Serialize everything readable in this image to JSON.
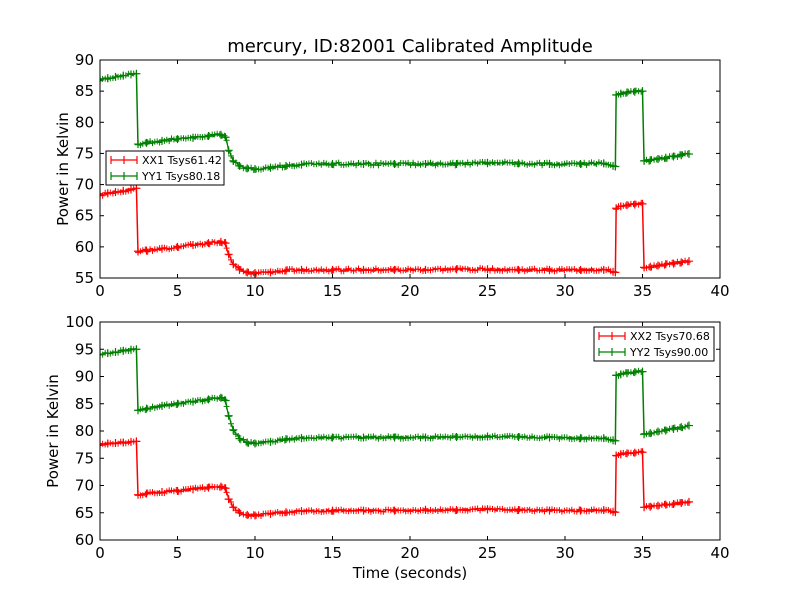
{
  "figure": {
    "title": "mercury, ID:82001 Calibrated Amplitude",
    "xlabel": "Time (seconds)"
  },
  "colors": {
    "xx": "#ff0000",
    "yy": "#008000"
  },
  "chart_data": [
    {
      "type": "line",
      "title": "mercury, ID:82001 Calibrated Amplitude",
      "xlabel": "",
      "ylabel": "Power in Kelvin",
      "xlim": [
        0,
        40
      ],
      "ylim": [
        55,
        90
      ],
      "xticks": [
        0,
        5,
        10,
        15,
        20,
        25,
        30,
        35,
        40
      ],
      "yticks": [
        55,
        60,
        65,
        70,
        75,
        80,
        85,
        90
      ],
      "grid": false,
      "legend": "center-left",
      "series": [
        {
          "name": "XX1 Tsys61.42",
          "color": "#ff0000",
          "segments": [
            {
              "x": [
                0.0,
                0.5,
                1.0,
                1.5,
                2.0,
                2.35
              ],
              "y": [
                68.3,
                68.6,
                68.8,
                69.0,
                69.2,
                69.4
              ]
            },
            {
              "x": [
                2.45,
                3.0,
                4.0,
                5.0,
                6.0,
                7.0,
                7.8,
                8.1,
                8.3,
                8.6,
                9.0,
                9.5,
                10.0,
                11.0,
                12.0,
                13.0,
                15.0,
                17.0,
                19.0,
                21.0,
                23.0,
                25.0,
                27.0,
                29.0,
                31.0,
                32.5,
                33.1,
                33.25
              ],
              "y": [
                59.3,
                59.4,
                59.7,
                60.0,
                60.3,
                60.6,
                60.8,
                60.6,
                58.8,
                57.2,
                56.3,
                55.9,
                55.8,
                55.9,
                56.2,
                56.3,
                56.3,
                56.3,
                56.3,
                56.3,
                56.4,
                56.4,
                56.3,
                56.3,
                56.3,
                56.3,
                56.0,
                55.9
              ]
            },
            {
              "x": [
                33.3,
                33.6,
                34.0,
                34.5,
                35.0
              ],
              "y": [
                66.2,
                66.5,
                66.7,
                66.8,
                66.9
              ]
            },
            {
              "x": [
                35.1,
                35.5,
                36.0,
                36.5,
                37.0,
                37.5,
                38.0
              ],
              "y": [
                56.7,
                56.8,
                57.0,
                57.2,
                57.3,
                57.5,
                57.7
              ]
            }
          ]
        },
        {
          "name": "YY1 Tsys80.18",
          "color": "#008000",
          "segments": [
            {
              "x": [
                0.0,
                0.5,
                1.0,
                1.5,
                2.0,
                2.35
              ],
              "y": [
                86.8,
                87.1,
                87.3,
                87.5,
                87.7,
                87.8
              ]
            },
            {
              "x": [
                2.45,
                3.0,
                4.0,
                5.0,
                6.0,
                7.0,
                7.8,
                8.1,
                8.3,
                8.6,
                9.0,
                9.5,
                10.0,
                11.0,
                12.0,
                13.0,
                15.0,
                17.0,
                19.0,
                21.0,
                23.0,
                25.0,
                27.0,
                29.0,
                31.0,
                32.5,
                33.1,
                33.25
              ],
              "y": [
                76.5,
                76.7,
                77.0,
                77.3,
                77.5,
                77.8,
                78.0,
                77.6,
                75.5,
                73.8,
                73.0,
                72.6,
                72.5,
                72.7,
                73.0,
                73.2,
                73.3,
                73.3,
                73.3,
                73.3,
                73.3,
                73.5,
                73.4,
                73.3,
                73.3,
                73.4,
                73.0,
                72.9
              ]
            },
            {
              "x": [
                33.3,
                33.6,
                34.0,
                34.5,
                35.0
              ],
              "y": [
                84.4,
                84.6,
                84.8,
                84.9,
                85.0
              ]
            },
            {
              "x": [
                35.1,
                35.5,
                36.0,
                36.5,
                37.0,
                37.5,
                38.0
              ],
              "y": [
                73.8,
                73.9,
                74.1,
                74.3,
                74.5,
                74.7,
                74.9
              ]
            }
          ]
        }
      ]
    },
    {
      "type": "line",
      "title": "",
      "xlabel": "Time (seconds)",
      "ylabel": "Power in Kelvin",
      "xlim": [
        0,
        40
      ],
      "ylim": [
        60,
        100
      ],
      "xticks": [
        0,
        5,
        10,
        15,
        20,
        25,
        30,
        35,
        40
      ],
      "yticks": [
        60,
        65,
        70,
        75,
        80,
        85,
        90,
        95,
        100
      ],
      "grid": false,
      "legend": "top-right",
      "series": [
        {
          "name": "XX2 Tsys70.68",
          "color": "#ff0000",
          "segments": [
            {
              "x": [
                0.0,
                0.5,
                1.0,
                1.5,
                2.0,
                2.35
              ],
              "y": [
                77.5,
                77.7,
                77.8,
                77.9,
                78.0,
                78.1
              ]
            },
            {
              "x": [
                2.45,
                3.0,
                4.0,
                5.0,
                6.0,
                7.0,
                7.8,
                8.1,
                8.3,
                8.6,
                9.0,
                9.5,
                10.0,
                11.0,
                12.0,
                13.0,
                15.0,
                17.0,
                19.0,
                21.0,
                23.0,
                25.0,
                27.0,
                29.0,
                31.0,
                32.5,
                33.1,
                33.25
              ],
              "y": [
                68.3,
                68.5,
                68.8,
                69.0,
                69.3,
                69.6,
                69.8,
                69.5,
                67.5,
                66.0,
                65.0,
                64.6,
                64.5,
                64.8,
                65.1,
                65.3,
                65.4,
                65.4,
                65.4,
                65.5,
                65.5,
                65.6,
                65.5,
                65.4,
                65.4,
                65.5,
                65.2,
                65.1
              ]
            },
            {
              "x": [
                33.3,
                33.6,
                34.0,
                34.5,
                35.0
              ],
              "y": [
                75.5,
                75.7,
                75.9,
                76.0,
                76.1
              ]
            },
            {
              "x": [
                35.1,
                35.5,
                36.0,
                36.5,
                37.0,
                37.5,
                38.0
              ],
              "y": [
                66.0,
                66.1,
                66.3,
                66.5,
                66.6,
                66.8,
                67.0
              ]
            }
          ]
        },
        {
          "name": "YY2 Tsys90.00",
          "color": "#008000",
          "segments": [
            {
              "x": [
                0.0,
                0.5,
                1.0,
                1.5,
                2.0,
                2.35
              ],
              "y": [
                94.0,
                94.3,
                94.5,
                94.7,
                94.9,
                95.0
              ]
            },
            {
              "x": [
                2.45,
                3.0,
                4.0,
                5.0,
                6.0,
                7.0,
                7.8,
                8.1,
                8.3,
                8.6,
                9.0,
                9.5,
                10.0,
                11.0,
                12.0,
                13.0,
                15.0,
                17.0,
                19.0,
                21.0,
                23.0,
                25.0,
                27.0,
                29.0,
                31.0,
                32.5,
                33.1,
                33.25
              ],
              "y": [
                83.8,
                84.1,
                84.6,
                85.0,
                85.4,
                85.8,
                86.1,
                85.6,
                82.8,
                80.2,
                78.6,
                77.9,
                77.7,
                78.0,
                78.5,
                78.7,
                78.8,
                78.8,
                78.8,
                78.8,
                78.9,
                79.0,
                78.9,
                78.8,
                78.7,
                78.7,
                78.3,
                78.2
              ]
            },
            {
              "x": [
                33.3,
                33.6,
                34.0,
                34.5,
                35.0
              ],
              "y": [
                90.2,
                90.4,
                90.6,
                90.8,
                90.9
              ]
            },
            {
              "x": [
                35.1,
                35.5,
                36.0,
                36.5,
                37.0,
                37.5,
                38.0
              ],
              "y": [
                79.4,
                79.6,
                79.9,
                80.1,
                80.4,
                80.7,
                81.0
              ]
            }
          ]
        }
      ]
    }
  ]
}
